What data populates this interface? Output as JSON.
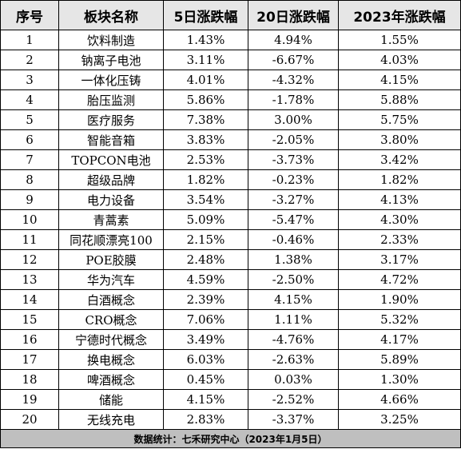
{
  "headers": [
    "序号",
    "板块名称",
    "5日涨跌幅",
    "20日涨跌幅",
    "2023年涨跌幅"
  ],
  "rows": [
    [
      "1",
      "饮料制造",
      "1.43%",
      "4.94%",
      "1.55%"
    ],
    [
      "2",
      "钠离子电池",
      "3.11%",
      "-6.67%",
      "4.03%"
    ],
    [
      "3",
      "一体化压铸",
      "4.01%",
      "-4.32%",
      "4.15%"
    ],
    [
      "4",
      "胎压监测",
      "5.86%",
      "-1.78%",
      "5.88%"
    ],
    [
      "5",
      "医疗服务",
      "7.38%",
      "3.00%",
      "5.75%"
    ],
    [
      "6",
      "智能音箱",
      "3.83%",
      "-2.05%",
      "3.80%"
    ],
    [
      "7",
      "TOPCON电池",
      "2.53%",
      "-3.73%",
      "3.42%"
    ],
    [
      "8",
      "超级品牌",
      "1.82%",
      "-0.23%",
      "1.82%"
    ],
    [
      "9",
      "电力设备",
      "3.54%",
      "-3.27%",
      "4.13%"
    ],
    [
      "10",
      "青蒿素",
      "5.09%",
      "-5.47%",
      "4.30%"
    ],
    [
      "11",
      "同花顺漂亮100",
      "2.15%",
      "-0.46%",
      "2.33%"
    ],
    [
      "12",
      "POE胶膜",
      "2.48%",
      "1.38%",
      "3.17%"
    ],
    [
      "13",
      "华为汽车",
      "4.59%",
      "-2.50%",
      "4.72%"
    ],
    [
      "14",
      "白酒概念",
      "2.39%",
      "4.15%",
      "1.90%"
    ],
    [
      "15",
      "CRO概念",
      "7.06%",
      "1.11%",
      "5.32%"
    ],
    [
      "16",
      "宁德时代概念",
      "3.49%",
      "-4.76%",
      "4.17%"
    ],
    [
      "17",
      "换电概念",
      "6.03%",
      "-2.63%",
      "5.89%"
    ],
    [
      "18",
      "啤酒概念",
      "0.45%",
      "0.03%",
      "1.30%"
    ],
    [
      "19",
      "储能",
      "4.15%",
      "-2.52%",
      "4.66%"
    ],
    [
      "20",
      "无线充电",
      "2.83%",
      "-3.37%",
      "3.25%"
    ]
  ],
  "footer": "数据统计：七禾研究中心（2023年1月5日）",
  "colors": {
    "header_bg": "#e6e6e6",
    "footer_bg": "#bfbfbf",
    "border": "#000000"
  }
}
